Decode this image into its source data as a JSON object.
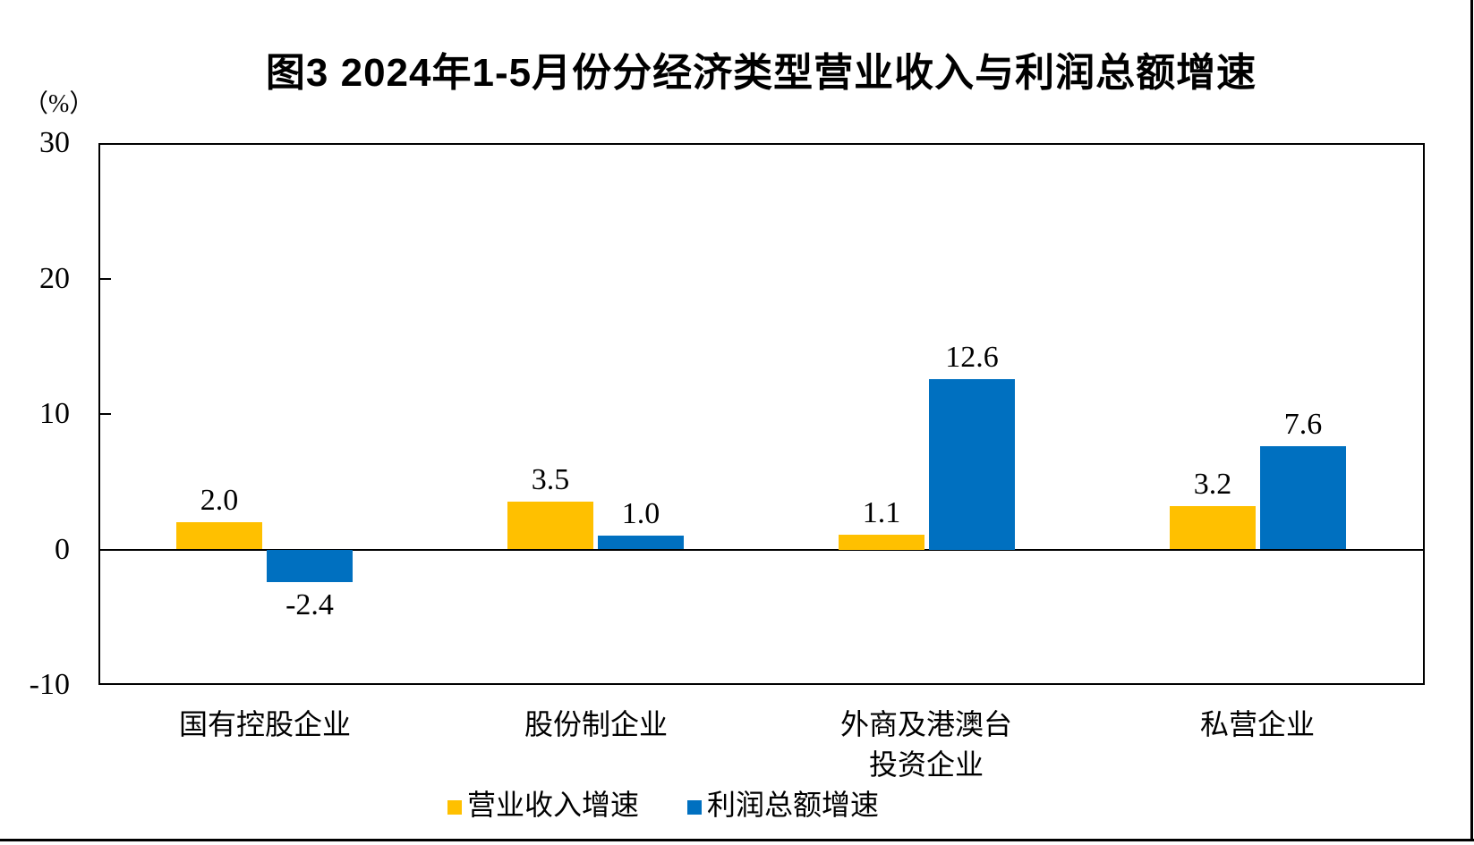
{
  "title": "图3 2024年1-5月份分经济类型营业收入与利润总额增速",
  "y_axis": {
    "unit": "（%）",
    "tick_labels": [
      "30",
      "20",
      "10",
      "0",
      "-10"
    ]
  },
  "chart_data": {
    "type": "bar",
    "title": "图3 2024年1-5月份分经济类型营业收入与利润总额增速",
    "categories": [
      "国有控股企业",
      "股份制企业",
      "外商及港澳台投资企业",
      "私营企业"
    ],
    "category_label_lines": [
      [
        "国有控股企业"
      ],
      [
        "股份制企业"
      ],
      [
        "外商及港澳台",
        "投资企业"
      ],
      [
        "私营企业"
      ]
    ],
    "series": [
      {
        "name": "营业收入增速",
        "color": "#FFC000",
        "values": [
          2.0,
          3.5,
          1.1,
          3.2
        ],
        "value_labels": [
          "2.0",
          "3.5",
          "1.1",
          "3.2"
        ]
      },
      {
        "name": "利润总额增速",
        "color": "#0070C0",
        "values": [
          -2.4,
          1.0,
          12.6,
          7.6
        ],
        "value_labels": [
          "-2.4",
          "1.0",
          "12.6",
          "7.6"
        ]
      }
    ],
    "ylim": [
      -10,
      30
    ],
    "yticks": [
      30,
      20,
      10,
      0,
      -10
    ],
    "y_unit": "（%）",
    "xlabel": "",
    "ylabel": "",
    "grid": false,
    "legend_position": "bottom",
    "axis_color": "#000000",
    "text_color": "#000000",
    "background_color": "#ffffff"
  }
}
